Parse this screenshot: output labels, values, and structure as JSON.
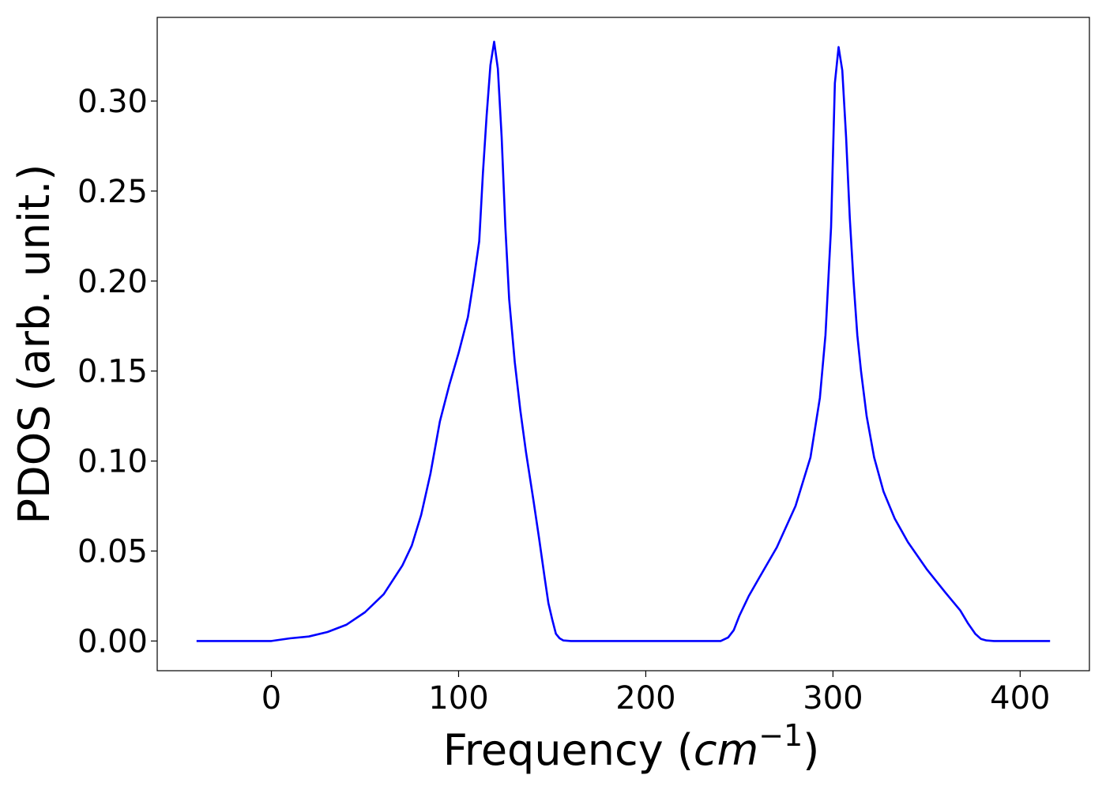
{
  "chart_data": {
    "type": "line",
    "title": "",
    "xlabel": "Frequency (",
    "xlabel_math": "cm",
    "xlabel_sup": "−1",
    "xlabel_close": ")",
    "ylabel": "PDOS (arb. unit.)",
    "xlim": [
      -61,
      437
    ],
    "ylim": [
      -0.0165,
      0.3465
    ],
    "xticks": [
      0,
      100,
      200,
      300,
      400
    ],
    "xtick_labels": [
      "0",
      "100",
      "200",
      "300",
      "400"
    ],
    "yticks": [
      0.0,
      0.05,
      0.1,
      0.15,
      0.2,
      0.25,
      0.3
    ],
    "ytick_labels": [
      "0.00",
      "0.05",
      "0.10",
      "0.15",
      "0.20",
      "0.25",
      "0.30"
    ],
    "grid": false,
    "legend": "none",
    "series": [
      {
        "color": "#0000ff",
        "x": [
          -40,
          0,
          10,
          20,
          30,
          40,
          50,
          60,
          70,
          75,
          80,
          85,
          90,
          95,
          100,
          105,
          108,
          111,
          113,
          115,
          117,
          119,
          121,
          123,
          125,
          127,
          130,
          133,
          136,
          140,
          143,
          146,
          148,
          150,
          152,
          154,
          156,
          160,
          200,
          240,
          244,
          247,
          250,
          255,
          260,
          270,
          280,
          288,
          293,
          296,
          299,
          301,
          303,
          305,
          307,
          309,
          311,
          313,
          315,
          318,
          322,
          327,
          333,
          340,
          350,
          360,
          368,
          372,
          376,
          379,
          382,
          386,
          400,
          416
        ],
        "y": [
          0.0,
          0.0,
          0.0015,
          0.0025,
          0.005,
          0.009,
          0.016,
          0.026,
          0.042,
          0.053,
          0.07,
          0.093,
          0.122,
          0.142,
          0.16,
          0.18,
          0.2,
          0.222,
          0.26,
          0.292,
          0.32,
          0.333,
          0.318,
          0.28,
          0.23,
          0.19,
          0.155,
          0.128,
          0.105,
          0.078,
          0.057,
          0.035,
          0.021,
          0.012,
          0.004,
          0.0015,
          0.0003,
          0.0,
          0.0,
          0.0,
          0.002,
          0.006,
          0.014,
          0.025,
          0.034,
          0.052,
          0.075,
          0.102,
          0.135,
          0.17,
          0.23,
          0.31,
          0.33,
          0.317,
          0.28,
          0.235,
          0.2,
          0.17,
          0.15,
          0.125,
          0.102,
          0.083,
          0.068,
          0.055,
          0.04,
          0.027,
          0.017,
          0.01,
          0.004,
          0.0012,
          0.0003,
          0.0,
          0.0,
          0.0
        ]
      }
    ]
  }
}
